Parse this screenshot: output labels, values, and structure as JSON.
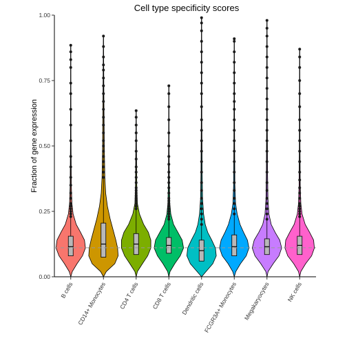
{
  "chart_data": {
    "type": "violin",
    "title": "Cell type specificity scores",
    "xlabel": "",
    "ylabel": "Fraction of gene expression",
    "ylim": [
      0,
      1
    ],
    "yticks": [
      "0.00",
      "0.25",
      "0.50",
      "0.75",
      "1.00"
    ],
    "ytick_values": [
      0,
      0.25,
      0.5,
      0.75,
      1.0
    ],
    "reference_line": 0.111,
    "grid": false,
    "legend": "none",
    "categories": [
      "B cells",
      "CD14+ Monocytes",
      "CD4 T cells",
      "CD8 T cells",
      "Dendritic cells",
      "FCGR3A+ Monocytes",
      "Megakaryocytes",
      "NK cells"
    ],
    "colors": [
      "#F8766D",
      "#CD9600",
      "#7CAE00",
      "#00BE67",
      "#00BFC4",
      "#00A9FF",
      "#C77CFF",
      "#FF61CC"
    ],
    "series": [
      {
        "name": "B cells",
        "q1": 0.08,
        "median": 0.115,
        "q3": 0.155,
        "max": 0.885,
        "outliers": [
          0.23,
          0.24,
          0.25,
          0.26,
          0.27,
          0.28,
          0.3,
          0.32,
          0.35,
          0.38,
          0.42,
          0.46,
          0.52,
          0.58,
          0.64,
          0.7,
          0.74,
          0.8,
          0.83,
          0.86,
          0.885
        ],
        "density": [
          [
            0.0,
            0.0
          ],
          [
            0.02,
            0.08
          ],
          [
            0.05,
            0.32
          ],
          [
            0.08,
            0.6
          ],
          [
            0.11,
            0.75
          ],
          [
            0.14,
            0.7
          ],
          [
            0.17,
            0.5
          ],
          [
            0.2,
            0.28
          ],
          [
            0.24,
            0.12
          ],
          [
            0.28,
            0.06
          ],
          [
            0.35,
            0.03
          ],
          [
            0.5,
            0.015
          ],
          [
            0.7,
            0.01
          ],
          [
            0.885,
            0.004
          ]
        ]
      },
      {
        "name": "CD14+ Monocytes",
        "q1": 0.075,
        "median": 0.125,
        "q3": 0.205,
        "max": 0.92,
        "outliers": [
          0.38,
          0.4,
          0.42,
          0.44,
          0.46,
          0.48,
          0.5,
          0.52,
          0.55,
          0.58,
          0.61,
          0.64,
          0.67,
          0.7,
          0.73,
          0.76,
          0.79,
          0.81,
          0.84,
          0.88,
          0.92
        ],
        "density": [
          [
            0.0,
            0.0
          ],
          [
            0.02,
            0.1
          ],
          [
            0.05,
            0.4
          ],
          [
            0.08,
            0.52
          ],
          [
            0.11,
            0.5
          ],
          [
            0.14,
            0.44
          ],
          [
            0.18,
            0.34
          ],
          [
            0.22,
            0.24
          ],
          [
            0.27,
            0.14
          ],
          [
            0.32,
            0.08
          ],
          [
            0.38,
            0.05
          ],
          [
            0.5,
            0.03
          ],
          [
            0.7,
            0.015
          ],
          [
            0.92,
            0.004
          ]
        ]
      },
      {
        "name": "CD4 T cells",
        "q1": 0.085,
        "median": 0.125,
        "q3": 0.165,
        "max": 0.635,
        "outliers": [
          0.26,
          0.27,
          0.28,
          0.29,
          0.3,
          0.31,
          0.32,
          0.33,
          0.34,
          0.36,
          0.38,
          0.4,
          0.42,
          0.45,
          0.48,
          0.52,
          0.55,
          0.58,
          0.61,
          0.635
        ],
        "density": [
          [
            0.0,
            0.0
          ],
          [
            0.02,
            0.06
          ],
          [
            0.05,
            0.3
          ],
          [
            0.08,
            0.55
          ],
          [
            0.11,
            0.7
          ],
          [
            0.14,
            0.7
          ],
          [
            0.17,
            0.58
          ],
          [
            0.2,
            0.36
          ],
          [
            0.24,
            0.16
          ],
          [
            0.28,
            0.06
          ],
          [
            0.35,
            0.03
          ],
          [
            0.5,
            0.015
          ],
          [
            0.635,
            0.004
          ]
        ]
      },
      {
        "name": "CD8 T cells",
        "q1": 0.09,
        "median": 0.12,
        "q3": 0.15,
        "max": 0.73,
        "outliers": [
          0.22,
          0.23,
          0.24,
          0.25,
          0.26,
          0.27,
          0.28,
          0.29,
          0.3,
          0.32,
          0.34,
          0.36,
          0.38,
          0.4,
          0.43,
          0.46,
          0.5,
          0.55,
          0.6,
          0.65,
          0.7,
          0.73
        ],
        "density": [
          [
            0.0,
            0.0
          ],
          [
            0.02,
            0.06
          ],
          [
            0.05,
            0.3
          ],
          [
            0.08,
            0.58
          ],
          [
            0.11,
            0.75
          ],
          [
            0.14,
            0.68
          ],
          [
            0.17,
            0.46
          ],
          [
            0.2,
            0.24
          ],
          [
            0.24,
            0.1
          ],
          [
            0.28,
            0.05
          ],
          [
            0.35,
            0.025
          ],
          [
            0.5,
            0.012
          ],
          [
            0.73,
            0.004
          ]
        ]
      },
      {
        "name": "Dendritic cells",
        "q1": 0.06,
        "median": 0.1,
        "q3": 0.14,
        "max": 0.99,
        "outliers": [
          0.2,
          0.22,
          0.24,
          0.26,
          0.28,
          0.3,
          0.33,
          0.36,
          0.4,
          0.44,
          0.48,
          0.52,
          0.56,
          0.6,
          0.65,
          0.7,
          0.74,
          0.78,
          0.82,
          0.86,
          0.9,
          0.94,
          0.97,
          0.99
        ],
        "density": [
          [
            0.0,
            0.0
          ],
          [
            0.02,
            0.22
          ],
          [
            0.05,
            0.55
          ],
          [
            0.08,
            0.72
          ],
          [
            0.11,
            0.68
          ],
          [
            0.14,
            0.5
          ],
          [
            0.17,
            0.3
          ],
          [
            0.2,
            0.18
          ],
          [
            0.24,
            0.1
          ],
          [
            0.3,
            0.05
          ],
          [
            0.4,
            0.03
          ],
          [
            0.6,
            0.015
          ],
          [
            0.99,
            0.004
          ]
        ]
      },
      {
        "name": "FCGR3A+ Monocytes",
        "q1": 0.08,
        "median": 0.115,
        "q3": 0.16,
        "max": 0.91,
        "outliers": [
          0.24,
          0.26,
          0.28,
          0.3,
          0.33,
          0.36,
          0.4,
          0.44,
          0.48,
          0.52,
          0.56,
          0.6,
          0.64,
          0.67,
          0.7,
          0.74,
          0.78,
          0.82,
          0.86,
          0.9,
          0.91
        ],
        "density": [
          [
            0.0,
            0.0
          ],
          [
            0.02,
            0.08
          ],
          [
            0.05,
            0.32
          ],
          [
            0.08,
            0.62
          ],
          [
            0.11,
            0.76
          ],
          [
            0.14,
            0.68
          ],
          [
            0.17,
            0.48
          ],
          [
            0.2,
            0.3
          ],
          [
            0.24,
            0.15
          ],
          [
            0.28,
            0.07
          ],
          [
            0.35,
            0.035
          ],
          [
            0.5,
            0.018
          ],
          [
            0.91,
            0.004
          ]
        ]
      },
      {
        "name": "Megakaryocytes",
        "q1": 0.085,
        "median": 0.115,
        "q3": 0.145,
        "max": 0.98,
        "outliers": [
          0.22,
          0.24,
          0.26,
          0.28,
          0.3,
          0.33,
          0.36,
          0.4,
          0.44,
          0.48,
          0.52,
          0.56,
          0.6,
          0.64,
          0.68,
          0.72,
          0.76,
          0.8,
          0.84,
          0.88,
          0.92,
          0.95,
          0.98
        ],
        "density": [
          [
            0.0,
            0.0
          ],
          [
            0.02,
            0.06
          ],
          [
            0.05,
            0.32
          ],
          [
            0.08,
            0.62
          ],
          [
            0.11,
            0.76
          ],
          [
            0.14,
            0.66
          ],
          [
            0.17,
            0.42
          ],
          [
            0.2,
            0.22
          ],
          [
            0.24,
            0.1
          ],
          [
            0.3,
            0.05
          ],
          [
            0.4,
            0.03
          ],
          [
            0.6,
            0.015
          ],
          [
            0.98,
            0.004
          ]
        ]
      },
      {
        "name": "NK cells",
        "q1": 0.085,
        "median": 0.12,
        "q3": 0.155,
        "max": 0.87,
        "outliers": [
          0.23,
          0.24,
          0.25,
          0.26,
          0.27,
          0.28,
          0.3,
          0.32,
          0.34,
          0.37,
          0.4,
          0.44,
          0.48,
          0.52,
          0.56,
          0.6,
          0.65,
          0.7,
          0.75,
          0.8,
          0.84,
          0.87
        ],
        "density": [
          [
            0.0,
            0.0
          ],
          [
            0.02,
            0.06
          ],
          [
            0.05,
            0.3
          ],
          [
            0.08,
            0.6
          ],
          [
            0.11,
            0.74
          ],
          [
            0.14,
            0.7
          ],
          [
            0.17,
            0.5
          ],
          [
            0.2,
            0.28
          ],
          [
            0.24,
            0.12
          ],
          [
            0.28,
            0.06
          ],
          [
            0.35,
            0.03
          ],
          [
            0.5,
            0.015
          ],
          [
            0.87,
            0.004
          ]
        ]
      }
    ]
  }
}
